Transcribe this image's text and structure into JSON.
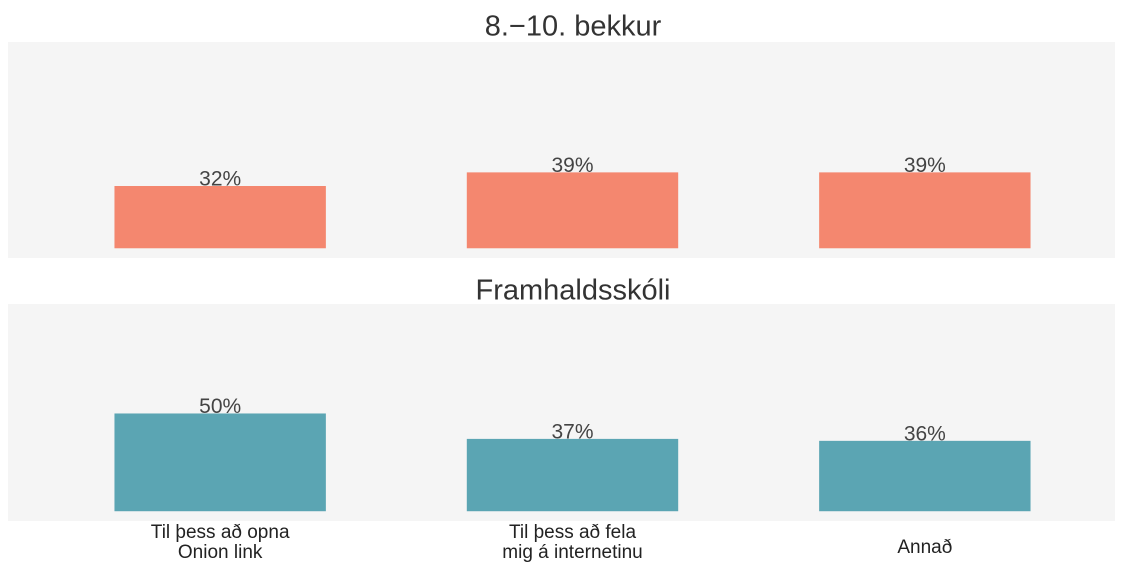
{
  "chart_data": [
    {
      "type": "bar",
      "title": "8.−10. bekkur",
      "values": [
        32,
        39,
        39
      ],
      "value_labels": [
        "32%",
        "39%",
        "39%"
      ],
      "color": "#f4876f",
      "ylim": [
        -5,
        106
      ]
    },
    {
      "type": "bar",
      "title": "Framhaldsskóli",
      "categories": [
        "Til þess að opna\nOnion link",
        "Til þess að fela\nmig á internetinu",
        "Annað"
      ],
      "values": [
        50,
        37,
        36
      ],
      "value_labels": [
        "50%",
        "37%",
        "36%"
      ],
      "color": "#5ba5b3",
      "ylim": [
        -5,
        106
      ]
    }
  ]
}
